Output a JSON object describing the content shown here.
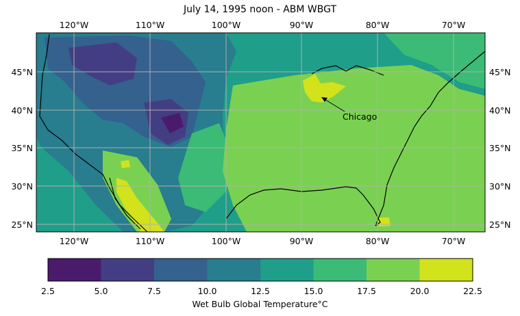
{
  "title": "July 14, 1995 noon - ABM WBGT",
  "map": {
    "lon_ticks": [
      "120°W",
      "110°W",
      "100°W",
      "90°W",
      "80°W",
      "70°W"
    ],
    "lat_ticks": [
      "45°N",
      "40°N",
      "35°N",
      "30°N",
      "25°N"
    ],
    "annotation": "Chicago",
    "grid": true,
    "levels": [
      {
        "min": 2.5,
        "max": 5.0,
        "color": "#4a1b6b"
      },
      {
        "min": 5.0,
        "max": 7.5,
        "color": "#433e84"
      },
      {
        "min": 7.5,
        "max": 10.0,
        "color": "#34618d"
      },
      {
        "min": 10.0,
        "max": 12.5,
        "color": "#287d8e"
      },
      {
        "min": 12.5,
        "max": 15.0,
        "color": "#1f9e89"
      },
      {
        "min": 15.0,
        "max": 17.5,
        "color": "#3bbb75"
      },
      {
        "min": 17.5,
        "max": 20.0,
        "color": "#7ad151"
      },
      {
        "min": 20.0,
        "max": 22.5,
        "color": "#d2e21b"
      }
    ]
  },
  "colorbar": {
    "ticks": [
      "2.5",
      "5.0",
      "7.5",
      "10.0",
      "12.5",
      "15.0",
      "17.5",
      "20.0",
      "22.5"
    ],
    "label": "Wet Bulb Global Temperature°C"
  }
}
